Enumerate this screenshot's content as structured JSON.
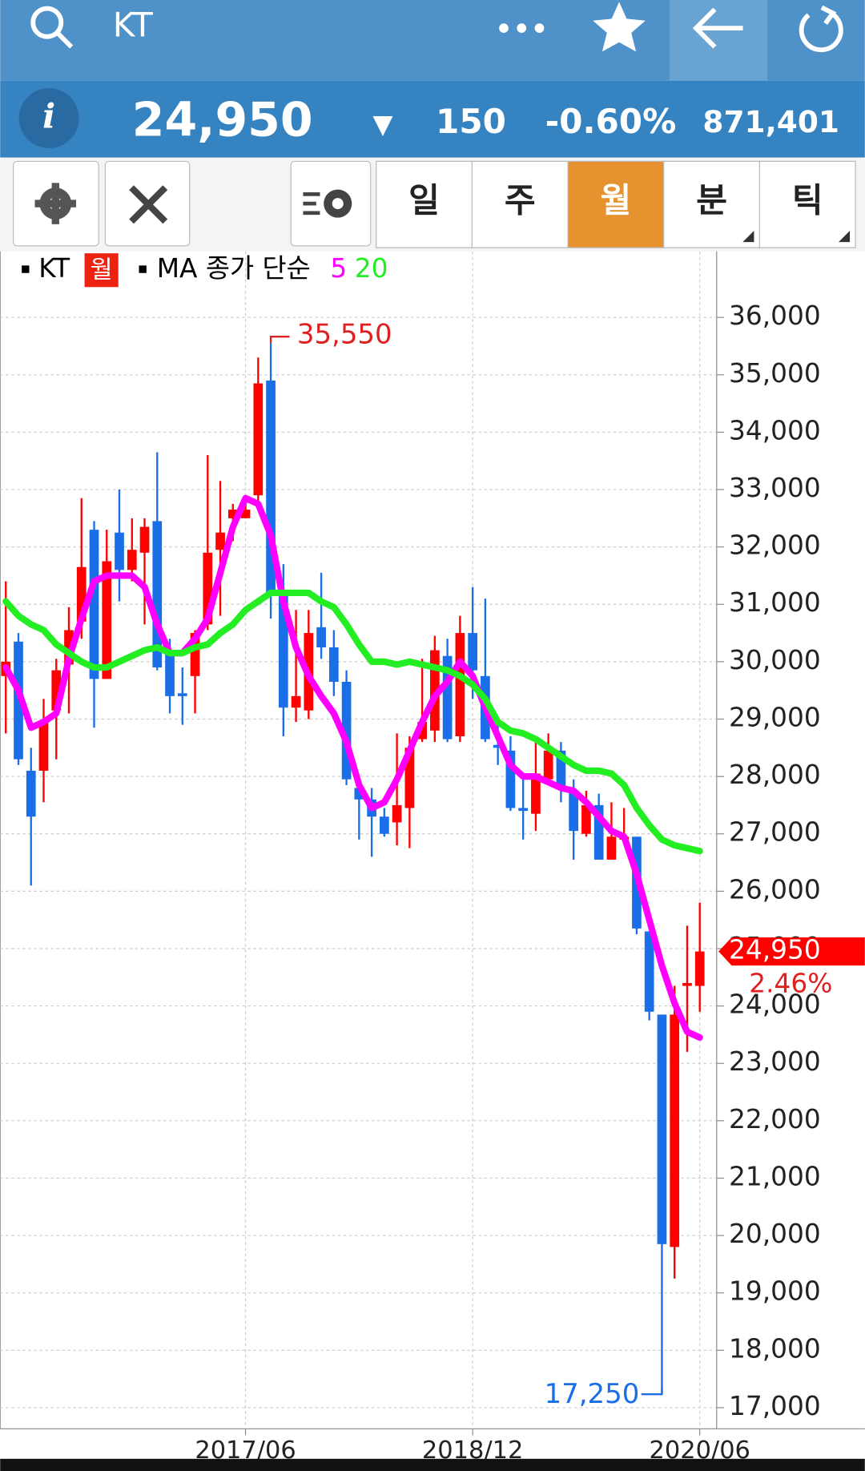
{
  "header": {
    "title": "KT"
  },
  "quote": {
    "price": "24,950",
    "direction": "▼",
    "change": "150",
    "change_pct": "-0.60%",
    "volume": "871,401"
  },
  "toolbar": {
    "periods": [
      "일",
      "주",
      "월",
      "분",
      "틱"
    ],
    "selected": 2
  },
  "chart_data": {
    "type": "candlestick",
    "legend": {
      "symbol": "KT",
      "period": "월",
      "ma_label": "MA 종가 단순"
    },
    "categories": [
      null,
      null,
      null,
      null,
      null,
      null,
      null,
      null,
      null,
      null,
      null,
      null,
      null,
      null,
      null,
      null,
      null,
      null,
      null,
      "2017/06",
      null,
      null,
      null,
      null,
      null,
      null,
      null,
      null,
      null,
      null,
      null,
      null,
      null,
      null,
      null,
      null,
      null,
      "2018/12",
      null,
      null,
      null,
      null,
      null,
      null,
      null,
      null,
      null,
      null,
      null,
      null,
      null,
      null,
      null,
      null,
      null,
      "2020/06"
    ],
    "open": [
      29750,
      30350,
      28100,
      28100,
      29150,
      29950,
      30700,
      32300,
      29700,
      32250,
      31600,
      31900,
      32450,
      30150,
      29450,
      29750,
      30650,
      31950,
      32500,
      32500,
      32900,
      34900,
      31250,
      29200,
      29150,
      30600,
      30250,
      29650,
      27800,
      27600,
      27300,
      27200,
      27450,
      28650,
      28800,
      30100,
      28700,
      30500,
      29750,
      28550,
      28450,
      27450,
      27350,
      27950,
      28450,
      27750,
      27000,
      27500,
      26550,
      26900,
      26950,
      25300,
      23850,
      19800,
      24350,
      24350
    ],
    "high": [
      31400,
      30500,
      28500,
      29350,
      30050,
      30950,
      32850,
      32450,
      32300,
      33000,
      32500,
      32500,
      33650,
      30400,
      29900,
      30550,
      33600,
      33150,
      32750,
      32900,
      35300,
      35550,
      31700,
      30900,
      30900,
      31550,
      30550,
      29850,
      27950,
      27800,
      27450,
      28750,
      28700,
      30050,
      30450,
      30400,
      30800,
      31300,
      31100,
      28900,
      28700,
      27950,
      28700,
      28750,
      28600,
      27950,
      27750,
      27700,
      27550,
      27450,
      26950,
      25300,
      23850,
      24350,
      25400,
      25800
    ],
    "low": [
      28750,
      28200,
      26100,
      27550,
      28300,
      29100,
      30400,
      28850,
      29700,
      31050,
      31400,
      30650,
      29850,
      29100,
      28900,
      29100,
      30550,
      30800,
      32100,
      32500,
      32700,
      30750,
      28700,
      28950,
      29000,
      30050,
      29400,
      27850,
      26900,
      26600,
      26950,
      26800,
      26750,
      28600,
      28600,
      28600,
      28600,
      29350,
      28600,
      28200,
      27400,
      26900,
      27050,
      27850,
      27550,
      26550,
      26950,
      26550,
      26550,
      26900,
      25250,
      23750,
      17250,
      19250,
      23200,
      23900
    ],
    "close": [
      30000,
      28300,
      27300,
      28950,
      29850,
      30550,
      31650,
      29700,
      31750,
      31600,
      31950,
      32350,
      29900,
      29400,
      29400,
      30500,
      31900,
      32250,
      32650,
      32650,
      34850,
      31200,
      29200,
      29400,
      30500,
      30250,
      29650,
      27950,
      27600,
      27300,
      27000,
      27500,
      28500,
      28950,
      30200,
      28650,
      30500,
      29850,
      28650,
      28500,
      27450,
      27400,
      28050,
      28450,
      27800,
      27050,
      27500,
      26550,
      26950,
      26950,
      25350,
      23900,
      19850,
      23850,
      24400,
      24950
    ],
    "up_color": "#ff0000",
    "down_color": "#1a6ee8",
    "series": [
      {
        "name": "5",
        "color": "#ff00ff",
        "values": [
          29900,
          29500,
          28850,
          28950,
          29100,
          30050,
          30750,
          31400,
          31500,
          31500,
          31500,
          31300,
          30650,
          30150,
          30150,
          30400,
          30750,
          31550,
          32350,
          32850,
          32750,
          32200,
          31050,
          30250,
          29750,
          29400,
          29100,
          28600,
          27850,
          27450,
          27550,
          27950,
          28450,
          28950,
          29400,
          29650,
          30000,
          29750,
          29200,
          28700,
          28200,
          28000,
          28000,
          27900,
          27800,
          27750,
          27550,
          27300,
          27050,
          26950,
          26300,
          25500,
          24700,
          24050,
          23550,
          23450
        ]
      },
      {
        "name": "20",
        "color": "#22ee22",
        "values": [
          31050,
          30800,
          30650,
          30550,
          30300,
          30150,
          30000,
          29900,
          29900,
          30000,
          30100,
          30200,
          30250,
          30150,
          30150,
          30250,
          30300,
          30500,
          30650,
          30900,
          31050,
          31200,
          31200,
          31200,
          31200,
          31050,
          30950,
          30650,
          30300,
          30000,
          30000,
          29950,
          30000,
          29950,
          29900,
          29850,
          29750,
          29600,
          29350,
          28950,
          28800,
          28750,
          28650,
          28500,
          28350,
          28200,
          28100,
          28100,
          28050,
          27850,
          27450,
          27150,
          26900,
          26800,
          26750,
          26700
        ]
      }
    ],
    "ylim": [
      16550,
      37150
    ],
    "yticks": [
      {
        "value": 17000,
        "label": "17,000"
      },
      {
        "value": 18000,
        "label": "18,000"
      },
      {
        "value": 19000,
        "label": "19,000"
      },
      {
        "value": 20000,
        "label": "20,000"
      },
      {
        "value": 21000,
        "label": "21,000"
      },
      {
        "value": 22000,
        "label": "22,000"
      },
      {
        "value": 23000,
        "label": "23,000"
      },
      {
        "value": 24000,
        "label": "24,000"
      },
      {
        "value": 25000,
        "label": "25,000"
      },
      {
        "value": 26000,
        "label": "26,000"
      },
      {
        "value": 27000,
        "label": "27,000"
      },
      {
        "value": 28000,
        "label": "28,000"
      },
      {
        "value": 29000,
        "label": "29,000"
      },
      {
        "value": 30000,
        "label": "30,000"
      },
      {
        "value": 31000,
        "label": "31,000"
      },
      {
        "value": 32000,
        "label": "32,000"
      },
      {
        "value": 33000,
        "label": "33,000"
      },
      {
        "value": 34000,
        "label": "34,000"
      },
      {
        "value": 35000,
        "label": "35,000"
      },
      {
        "value": 36000,
        "label": "36,000"
      }
    ],
    "grid": true,
    "max_marker": {
      "value": 35550,
      "label": "35,550"
    },
    "min_marker": {
      "value": 17250,
      "label": "17,250"
    },
    "current": {
      "value": 24950,
      "label": "24,950",
      "change_label": "2.46%"
    }
  }
}
